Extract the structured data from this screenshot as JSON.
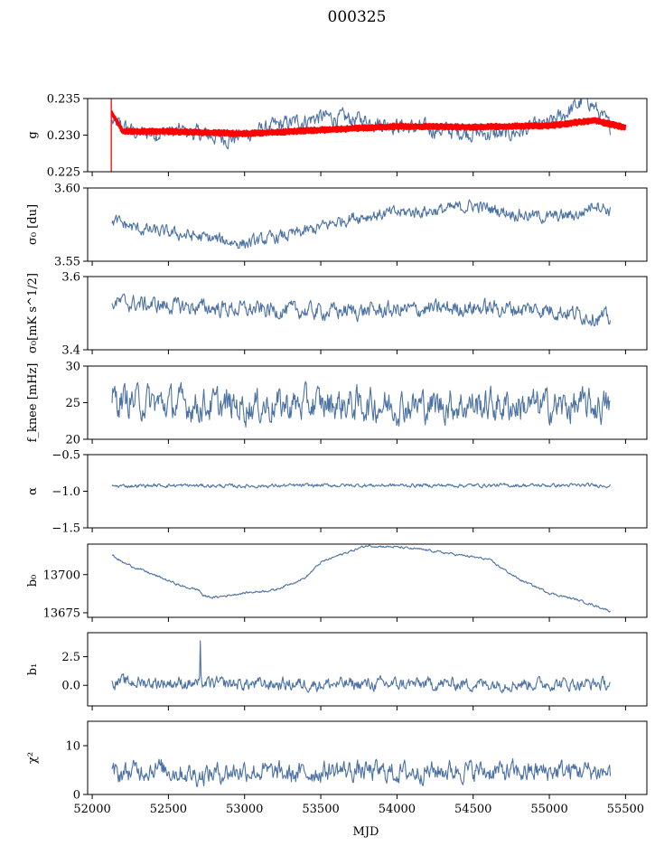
{
  "chart_data": {
    "type": "line",
    "title": "000325",
    "xlabel": "MJD",
    "xlim": [
      51970,
      55640
    ],
    "x_ticks": [
      52000,
      52500,
      53000,
      53500,
      54000,
      54500,
      55000,
      55500
    ],
    "x_tick_labels": [
      "52000",
      "52500",
      "53000",
      "53500",
      "54000",
      "54500",
      "55000",
      "55500"
    ],
    "x_start": 52130,
    "x_end": 55400,
    "colors": {
      "series": "#4c72a4",
      "fit": "#ff0000"
    },
    "panels": [
      {
        "key": "g",
        "ylabel": "g",
        "ylim": [
          0.225,
          0.235
        ],
        "yticks": [
          0.225,
          0.23,
          0.235
        ],
        "ytick_labels": [
          "0.225",
          "0.230",
          "0.235"
        ],
        "series": [
          {
            "kind": "noise",
            "color_key": "series",
            "anchors": [
              [
                52130,
                0.2318
              ],
              [
                52300,
                0.2302
              ],
              [
                52600,
                0.2305
              ],
              [
                52900,
                0.2295
              ],
              [
                53200,
                0.2312
              ],
              [
                53500,
                0.2325
              ],
              [
                53800,
                0.232
              ],
              [
                54100,
                0.231
              ],
              [
                54400,
                0.2305
              ],
              [
                54700,
                0.23
              ],
              [
                55000,
                0.2315
              ],
              [
                55250,
                0.235
              ],
              [
                55400,
                0.231
              ]
            ],
            "amp": 0.0009
          },
          {
            "kind": "band",
            "color_key": "fit",
            "anchors": [
              [
                52130,
                0.233
              ],
              [
                52200,
                0.2305
              ],
              [
                52500,
                0.2305
              ],
              [
                53000,
                0.2302
              ],
              [
                53500,
                0.2307
              ],
              [
                54000,
                0.2312
              ],
              [
                54500,
                0.2311
              ],
              [
                55000,
                0.2313
              ],
              [
                55300,
                0.232
              ],
              [
                55500,
                0.231
              ]
            ],
            "amp": 0.00045
          }
        ]
      },
      {
        "key": "sigma0_du",
        "ylabel": "σ₀ [du]",
        "ylim": [
          3.55,
          3.6
        ],
        "yticks": [
          3.55,
          3.6
        ],
        "ytick_labels": [
          "3.55",
          "3.60"
        ],
        "series": [
          {
            "kind": "noise",
            "color_key": "series",
            "anchors": [
              [
                52130,
                3.578
              ],
              [
                52300,
                3.572
              ],
              [
                52600,
                3.568
              ],
              [
                52800,
                3.565
              ],
              [
                53000,
                3.562
              ],
              [
                53200,
                3.566
              ],
              [
                53400,
                3.57
              ],
              [
                53700,
                3.58
              ],
              [
                54000,
                3.583
              ],
              [
                54300,
                3.585
              ],
              [
                54500,
                3.588
              ],
              [
                54800,
                3.582
              ],
              [
                55000,
                3.58
              ],
              [
                55200,
                3.582
              ],
              [
                55300,
                3.59
              ],
              [
                55400,
                3.584
              ]
            ],
            "amp": 0.0035
          }
        ]
      },
      {
        "key": "sigma0_mk",
        "ylabel": "σ₀[mK s^1/2]",
        "ylim": [
          3.4,
          3.6
        ],
        "yticks": [
          3.4,
          3.6
        ],
        "ytick_labels": [
          "3.4",
          "3.6"
        ],
        "series": [
          {
            "kind": "noise",
            "color_key": "series",
            "anchors": [
              [
                52130,
                3.53
              ],
              [
                52500,
                3.52
              ],
              [
                53000,
                3.51
              ],
              [
                53500,
                3.505
              ],
              [
                54000,
                3.508
              ],
              [
                54500,
                3.515
              ],
              [
                55000,
                3.51
              ],
              [
                55300,
                3.49
              ],
              [
                55400,
                3.485
              ]
            ],
            "amp": 0.018
          }
        ]
      },
      {
        "key": "fknee",
        "ylabel": "f_knee [mHz]",
        "ylim": [
          20,
          30
        ],
        "yticks": [
          20,
          25,
          30
        ],
        "ytick_labels": [
          "20",
          "25",
          "30"
        ],
        "series": [
          {
            "kind": "noise",
            "color_key": "series",
            "anchors": [
              [
                52130,
                25.5
              ],
              [
                52500,
                24.8
              ],
              [
                53000,
                24.5
              ],
              [
                53500,
                24.8
              ],
              [
                54000,
                24.6
              ],
              [
                54500,
                24.7
              ],
              [
                55000,
                24.5
              ],
              [
                55400,
                24.5
              ]
            ],
            "amp": 1.8
          }
        ]
      },
      {
        "key": "alpha",
        "ylabel": "α",
        "ylim": [
          -1.5,
          -0.5
        ],
        "yticks": [
          -1.5,
          -1.0,
          -0.5
        ],
        "ytick_labels": [
          "−1.5",
          "−1.0",
          "−0.5"
        ],
        "series": [
          {
            "kind": "noise",
            "color_key": "series",
            "anchors": [
              [
                52130,
                -0.93
              ],
              [
                52500,
                -0.92
              ],
              [
                53000,
                -0.93
              ],
              [
                53500,
                -0.92
              ],
              [
                54000,
                -0.92
              ],
              [
                54500,
                -0.92
              ],
              [
                55000,
                -0.92
              ],
              [
                55400,
                -0.92
              ]
            ],
            "amp": 0.02
          }
        ]
      },
      {
        "key": "b0",
        "ylabel": "b₀",
        "ylim": [
          13672,
          13720
        ],
        "yticks": [
          13675,
          13700
        ],
        "ytick_labels": [
          "13675",
          "13700"
        ],
        "series": [
          {
            "kind": "noise",
            "color_key": "series",
            "anchors": [
              [
                52130,
                13713
              ],
              [
                52200,
                13708
              ],
              [
                52400,
                13700
              ],
              [
                52600,
                13692
              ],
              [
                52700,
                13690
              ],
              [
                52730,
                13686
              ],
              [
                52800,
                13685
              ],
              [
                53000,
                13688
              ],
              [
                53200,
                13690
              ],
              [
                53400,
                13698
              ],
              [
                53500,
                13708
              ],
              [
                53600,
                13712
              ],
              [
                53800,
                13719
              ],
              [
                54000,
                13718
              ],
              [
                54200,
                13716
              ],
              [
                54400,
                13713
              ],
              [
                54600,
                13710
              ],
              [
                54800,
                13697
              ],
              [
                55000,
                13688
              ],
              [
                55200,
                13683
              ],
              [
                55350,
                13678
              ],
              [
                55400,
                13676
              ]
            ],
            "amp": 0.6
          }
        ]
      },
      {
        "key": "b1",
        "ylabel": "b₁",
        "ylim": [
          -1.8,
          4.6
        ],
        "yticks": [
          0.0,
          2.5
        ],
        "ytick_labels": [
          "0.0",
          "2.5"
        ],
        "series": [
          {
            "kind": "noise",
            "color_key": "series",
            "anchors": [
              [
                52130,
                0.3
              ],
              [
                53000,
                0.1
              ],
              [
                54000,
                0.1
              ],
              [
                55000,
                0.15
              ],
              [
                55400,
                0.1
              ]
            ],
            "amp": 0.45,
            "spikes": [
              [
                52710,
                3.9
              ]
            ]
          }
        ]
      },
      {
        "key": "chi2",
        "ylabel": "χ²",
        "ylim": [
          0,
          15
        ],
        "yticks": [
          0,
          10
        ],
        "ytick_labels": [
          "0",
          "10"
        ],
        "series": [
          {
            "kind": "noise",
            "color_key": "series",
            "anchors": [
              [
                52130,
                4.0
              ],
              [
                52400,
                5.5
              ],
              [
                52700,
                4.0
              ],
              [
                53000,
                5.0
              ],
              [
                53300,
                4.0
              ],
              [
                53600,
                5.0
              ],
              [
                54000,
                4.5
              ],
              [
                54400,
                5.0
              ],
              [
                54800,
                4.5
              ],
              [
                55200,
                5.0
              ],
              [
                55400,
                4.5
              ]
            ],
            "amp": 1.7
          }
        ]
      }
    ]
  }
}
